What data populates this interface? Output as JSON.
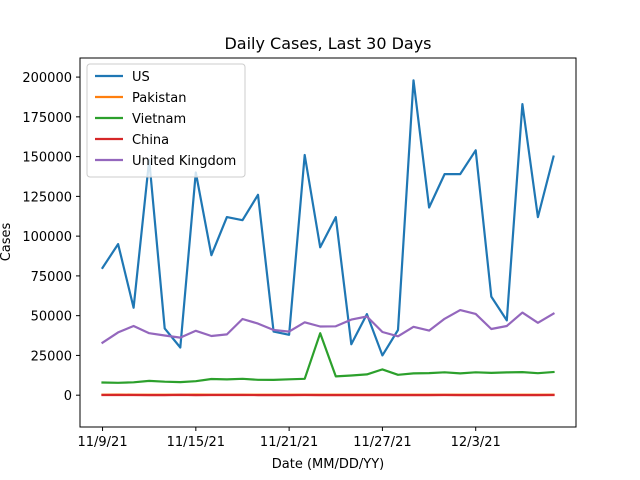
{
  "chart_data": {
    "type": "line",
    "title": "Daily Cases, Last 30 Days",
    "xlabel": "Date (MM/DD/YY)",
    "ylabel": "Cases",
    "ylim": [
      -20000,
      212000
    ],
    "x_tick_labels": [
      "11/9/21",
      "11/15/21",
      "11/21/21",
      "11/27/21",
      "12/3/21"
    ],
    "y_ticks": [
      0,
      25000,
      50000,
      75000,
      100000,
      125000,
      150000,
      175000,
      200000
    ],
    "y_tick_labels": [
      "0",
      "25000",
      "50000",
      "75000",
      "100000",
      "125000",
      "150000",
      "175000",
      "200000"
    ],
    "x": [
      "2021-11-09",
      "2021-11-10",
      "2021-11-11",
      "2021-11-12",
      "2021-11-13",
      "2021-11-14",
      "2021-11-15",
      "2021-11-16",
      "2021-11-17",
      "2021-11-18",
      "2021-11-19",
      "2021-11-20",
      "2021-11-21",
      "2021-11-22",
      "2021-11-23",
      "2021-11-24",
      "2021-11-25",
      "2021-11-26",
      "2021-11-27",
      "2021-11-28",
      "2021-11-29",
      "2021-11-30",
      "2021-12-01",
      "2021-12-02",
      "2021-12-03",
      "2021-12-04",
      "2021-12-05",
      "2021-12-06",
      "2021-12-07",
      "2021-12-08"
    ],
    "legend_position": "top-left",
    "grid": false,
    "series": [
      {
        "name": "US",
        "color": "#1f77b4",
        "values": [
          80000,
          95000,
          55000,
          148000,
          42000,
          30000,
          140000,
          88000,
          112000,
          110000,
          126000,
          40000,
          38000,
          151000,
          93000,
          112000,
          32000,
          51000,
          25000,
          41000,
          198000,
          118000,
          139000,
          139000,
          154000,
          62000,
          47000,
          183000,
          112000,
          150000
        ]
      },
      {
        "name": "Pakistan",
        "color": "#ff7f0e",
        "values": [
          300,
          350,
          320,
          300,
          280,
          300,
          350,
          320,
          300,
          310,
          290,
          280,
          300,
          290,
          300,
          310,
          300,
          290,
          280,
          300,
          310,
          320,
          300,
          310,
          300,
          290,
          300,
          310,
          300,
          300
        ]
      },
      {
        "name": "Vietnam",
        "color": "#2ca02c",
        "values": [
          8000,
          7800,
          8100,
          9000,
          8500,
          8200,
          8800,
          10200,
          9900,
          10300,
          9700,
          9600,
          10000,
          10300,
          39000,
          11800,
          12400,
          13100,
          16200,
          12800,
          13700,
          13900,
          14400,
          13700,
          14400,
          14000,
          14300,
          14500,
          13800,
          14600
        ]
      },
      {
        "name": "China",
        "color": "#d62728",
        "values": [
          100,
          150,
          120,
          80,
          60,
          200,
          70,
          90,
          100,
          110,
          80,
          60,
          70,
          90,
          80,
          70,
          60,
          80,
          50,
          60,
          70,
          80,
          90,
          80,
          70,
          60,
          80,
          70,
          60,
          90
        ]
      },
      {
        "name": "United Kingdom",
        "color": "#9467bd",
        "values": [
          33000,
          39500,
          43500,
          39000,
          37500,
          36200,
          40500,
          37200,
          38200,
          47900,
          45000,
          41000,
          40000,
          45800,
          43200,
          43300,
          47500,
          49500,
          39700,
          37000,
          43000,
          40600,
          48000,
          53500,
          51100,
          41600,
          43500,
          51900,
          45500,
          51300
        ]
      }
    ]
  }
}
